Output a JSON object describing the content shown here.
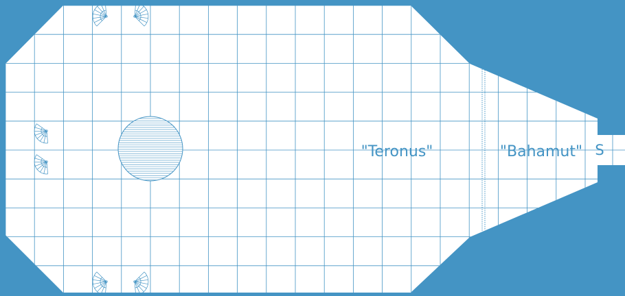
{
  "map": {
    "labels": {
      "teronus": "\"Teronus\"",
      "bahamut": "\"Bahamut\"",
      "exit": "S"
    },
    "colors": {
      "background": "#4494c4",
      "floor": "#ffffff",
      "line": "#4494c4"
    },
    "features": {
      "grid": true,
      "round_pool": true,
      "dotted_barrier": true,
      "fan_symbols": 6
    }
  }
}
